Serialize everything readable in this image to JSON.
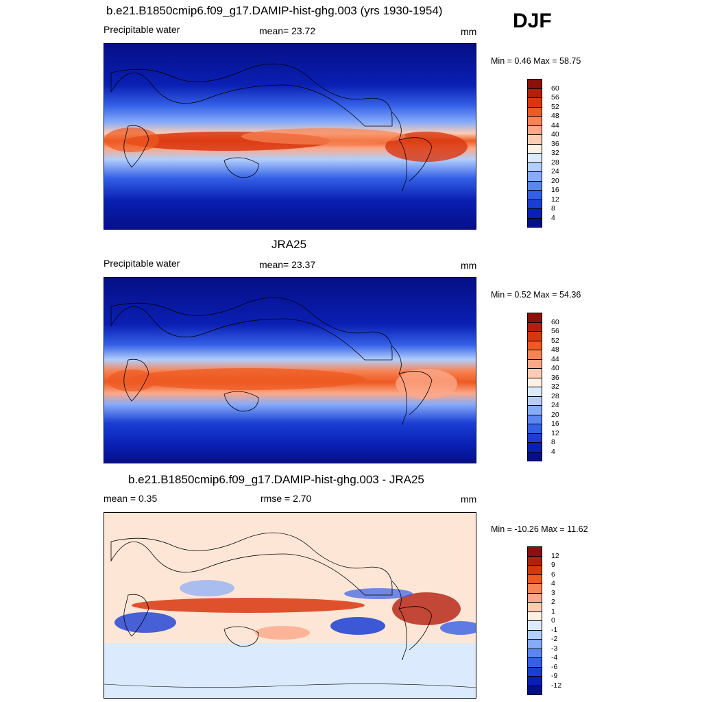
{
  "season": "DJF",
  "panels": [
    {
      "id": "model",
      "title": "b.e21.B1850cmip6.f09_g17.DAMIP-hist-ghg.003 (yrs 1930-1954)",
      "left": "Precipitable water",
      "center": "mean=  23.72",
      "right": "mm",
      "minmax": "Min =   0.46 Max =  58.75",
      "colorbar": {
        "labels": [
          "60",
          "56",
          "52",
          "48",
          "44",
          "40",
          "36",
          "32",
          "28",
          "24",
          "20",
          "16",
          "12",
          "8",
          "4"
        ],
        "colors": [
          "#8b0f0b",
          "#b31f0e",
          "#d9360f",
          "#ee5a22",
          "#f78455",
          "#fba889",
          "#fdccb3",
          "#fff0e4",
          "#dbeafc",
          "#b2cefc",
          "#86abfa",
          "#5b86f2",
          "#3460e6",
          "#1a3ed4",
          "#0a1fb3",
          "#050f86"
        ]
      }
    },
    {
      "id": "obs",
      "title": "JRA25",
      "left": "Precipitable water",
      "center": "mean=  23.37",
      "right": "mm",
      "minmax": "Min =   0.52 Max =  54.36",
      "colorbar": {
        "labels": [
          "60",
          "56",
          "52",
          "48",
          "44",
          "40",
          "36",
          "32",
          "28",
          "24",
          "20",
          "16",
          "12",
          "8",
          "4"
        ],
        "colors": [
          "#8b0f0b",
          "#b31f0e",
          "#d9360f",
          "#ee5a22",
          "#f78455",
          "#fba889",
          "#fdccb3",
          "#fff0e4",
          "#dbeafc",
          "#b2cefc",
          "#86abfa",
          "#5b86f2",
          "#3460e6",
          "#1a3ed4",
          "#0a1fb3",
          "#050f86"
        ]
      }
    },
    {
      "id": "diff",
      "title": "b.e21.B1850cmip6.f09_g17.DAMIP-hist-ghg.003 - JRA25",
      "left": "mean =   0.35",
      "center": "rmse =   2.70",
      "right": "mm",
      "minmax": "Min = -10.26 Max =  11.62",
      "colorbar": {
        "labels": [
          "12",
          "9",
          "6",
          "4",
          "3",
          "2",
          "1",
          "0",
          "-1",
          "-2",
          "-3",
          "-4",
          "-6",
          "-9",
          "-12"
        ],
        "colors": [
          "#8b0f0b",
          "#b31f0e",
          "#d9360f",
          "#ee5a22",
          "#f78455",
          "#fba889",
          "#fdccb3",
          "#fff0e4",
          "#dbeafc",
          "#b2cefc",
          "#86abfa",
          "#5b86f2",
          "#3460e6",
          "#1a3ed4",
          "#0a1fb3",
          "#050f86"
        ]
      }
    }
  ]
}
